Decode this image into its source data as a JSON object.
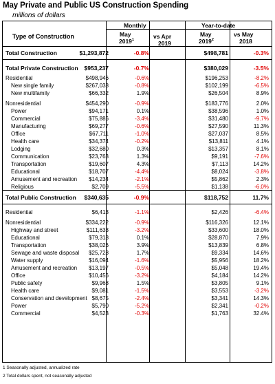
{
  "title": "May Private and Public US Construction Spending",
  "subtitle": "millions of dollars",
  "header": {
    "type_of_construction": "Type of Construction",
    "monthly": "Monthly",
    "ytd": "Year-to-date",
    "may_2019": "May",
    "year_2019a": "2019",
    "sup1": "1",
    "vs_apr": "vs Apr",
    "vs_apr_year": "2019",
    "may_2019b": "May",
    "year_2019b": "2019",
    "sup2": "2",
    "vs_may": "vs May",
    "vs_may_year": "2018"
  },
  "rows": [
    {
      "label": "Total Construction",
      "bold": true,
      "indent": false,
      "v1": "$1,293,872",
      "p1": "-0.8%",
      "v2": "$498,781",
      "p2": "-0.3%"
    },
    {
      "label": "Total Private Construction",
      "bold": true,
      "indent": false,
      "v1": "$953,237",
      "p1": "-0.7%",
      "v2": "$380,029",
      "p2": "-3.5%"
    },
    {
      "label": "Residential",
      "bold": false,
      "indent": false,
      "v1": "$498,946",
      "p1": "-0.6%",
      "v2": "$196,253",
      "p2": "-8.2%"
    },
    {
      "label": "New single family",
      "bold": false,
      "indent": true,
      "v1": "$267,038",
      "p1": "-0.8%",
      "v2": "$102,199",
      "p2": "-6.5%"
    },
    {
      "label": "New multifamily",
      "bold": false,
      "indent": true,
      "v1": "$66,332",
      "p1": "1.9%",
      "v2": "$26,504",
      "p2": "8.9%"
    },
    {
      "label": "Nonresidential",
      "bold": false,
      "indent": false,
      "v1": "$454,290",
      "p1": "-0.9%",
      "v2": "$183,776",
      "p2": "2.0%"
    },
    {
      "label": "Power",
      "bold": false,
      "indent": true,
      "v1": "$94,171",
      "p1": "0.1%",
      "v2": "$38,596",
      "p2": "1.0%"
    },
    {
      "label": "Commercial",
      "bold": false,
      "indent": true,
      "v1": "$75,886",
      "p1": "-3.4%",
      "v2": "$31,480",
      "p2": "-9.7%"
    },
    {
      "label": "Manufacturing",
      "bold": false,
      "indent": true,
      "v1": "$69,277",
      "p1": "-0.6%",
      "v2": "$27,590",
      "p2": "11.3%"
    },
    {
      "label": "Office",
      "bold": false,
      "indent": true,
      "v1": "$67,711",
      "p1": "-1.0%",
      "v2": "$27,037",
      "p2": "8.5%"
    },
    {
      "label": "Health care",
      "bold": false,
      "indent": true,
      "v1": "$34,374",
      "p1": "-0.2%",
      "v2": "$13,811",
      "p2": "4.1%"
    },
    {
      "label": "Lodging",
      "bold": false,
      "indent": true,
      "v1": "$32,680",
      "p1": "0.3%",
      "v2": "$13,357",
      "p2": "8.1%"
    },
    {
      "label": "Communication",
      "bold": false,
      "indent": true,
      "v1": "$23,763",
      "p1": "1.3%",
      "v2": "$9,191",
      "p2": "-7.6%"
    },
    {
      "label": "Transportation",
      "bold": false,
      "indent": true,
      "v1": "$19,607",
      "p1": "4.3%",
      "v2": "$7,113",
      "p2": "14.2%"
    },
    {
      "label": "Educational",
      "bold": false,
      "indent": true,
      "v1": "$18,707",
      "p1": "-4.4%",
      "v2": "$8,024",
      "p2": "-3.8%"
    },
    {
      "label": "Amusement and recreation",
      "bold": false,
      "indent": true,
      "v1": "$14,234",
      "p1": "-2.1%",
      "v2": "$5,862",
      "p2": "2.3%"
    },
    {
      "label": "Religious",
      "bold": false,
      "indent": true,
      "v1": "$2,709",
      "p1": "-5.5%",
      "v2": "$1,138",
      "p2": "-6.0%"
    },
    {
      "label": "Total Public Construction",
      "bold": true,
      "indent": false,
      "v1": "$340,635",
      "p1": "-0.9%",
      "v2": "$118,752",
      "p2": "11.7%"
    },
    {
      "label": "Residential",
      "bold": false,
      "indent": false,
      "v1": "$6,413",
      "p1": "-1.1%",
      "v2": "$2,426",
      "p2": "-6.4%"
    },
    {
      "label": "Nonresidential",
      "bold": false,
      "indent": false,
      "v1": "$334,222",
      "p1": "-0.9%",
      "v2": "$116,326",
      "p2": "12.1%"
    },
    {
      "label": "Highway and street",
      "bold": false,
      "indent": true,
      "v1": "$111,633",
      "p1": "-3.2%",
      "v2": "$33,600",
      "p2": "18.0%"
    },
    {
      "label": "Educational",
      "bold": false,
      "indent": true,
      "v1": "$79,318",
      "p1": "0.1%",
      "v2": "$28,870",
      "p2": "7.9%"
    },
    {
      "label": "Transportation",
      "bold": false,
      "indent": true,
      "v1": "$38,026",
      "p1": "3.9%",
      "v2": "$13,839",
      "p2": "6.8%"
    },
    {
      "label": "Sewage and waste disposal",
      "bold": false,
      "indent": true,
      "v1": "$25,728",
      "p1": "1.7%",
      "v2": "$9,334",
      "p2": "14.6%"
    },
    {
      "label": "Water supply",
      "bold": false,
      "indent": true,
      "v1": "$16,094",
      "p1": "-1.6%",
      "v2": "$5,956",
      "p2": "18.2%"
    },
    {
      "label": "Amusement and recreation",
      "bold": false,
      "indent": true,
      "v1": "$13,197",
      "p1": "-0.5%",
      "v2": "$5,048",
      "p2": "19.4%"
    },
    {
      "label": "Office",
      "bold": false,
      "indent": true,
      "v1": "$10,456",
      "p1": "-3.2%",
      "v2": "$4,184",
      "p2": "14.2%"
    },
    {
      "label": "Public safety",
      "bold": false,
      "indent": true,
      "v1": "$9,968",
      "p1": "1.5%",
      "v2": "$3,805",
      "p2": "9.1%"
    },
    {
      "label": "Health care",
      "bold": false,
      "indent": true,
      "v1": "$9,081",
      "p1": "-1.5%",
      "v2": "$3,553",
      "p2": "-3.2%"
    },
    {
      "label": "Conservation and development",
      "bold": false,
      "indent": true,
      "v1": "$8,675",
      "p1": "-2.4%",
      "v2": "$3,341",
      "p2": "14.3%"
    },
    {
      "label": "Power",
      "bold": false,
      "indent": true,
      "v1": "$5,790",
      "p1": "-5.2%",
      "v2": "$2,341",
      "p2": "-0.2%"
    },
    {
      "label": "Commercial",
      "bold": false,
      "indent": true,
      "v1": "$4,523",
      "p1": "-0.3%",
      "v2": "$1,763",
      "p2": "32.4%"
    }
  ],
  "footnotes": [
    "1 Seasonally adjusted, annualized rate",
    "2 Total dollars spent, not seasonally adjusted"
  ],
  "colors": {
    "negative": "#e00000",
    "text": "#000000"
  }
}
